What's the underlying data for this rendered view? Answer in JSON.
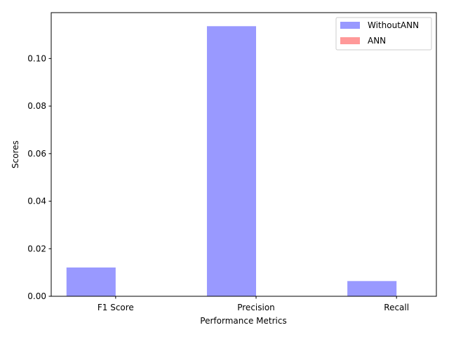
{
  "chart_data": {
    "type": "bar",
    "title": "",
    "xlabel": "Performance Metrics",
    "ylabel": "Scores",
    "categories": [
      "F1 Score",
      "Precision",
      "Recall"
    ],
    "series": [
      {
        "name": "WithoutANN",
        "values": [
          0.0121,
          0.1136,
          0.0064
        ],
        "color": "#9999ff"
      },
      {
        "name": "ANN",
        "values": [
          0.0,
          0.0,
          0.0
        ],
        "color": "#ff9999"
      }
    ],
    "ylim": [
      0,
      0.1193
    ],
    "yticks": [
      0.0,
      0.02,
      0.04,
      0.06,
      0.08,
      0.1
    ],
    "ytick_labels": [
      "0.00",
      "0.02",
      "0.04",
      "0.06",
      "0.08",
      "0.10"
    ],
    "grid": false,
    "legend_position": "top-right"
  }
}
